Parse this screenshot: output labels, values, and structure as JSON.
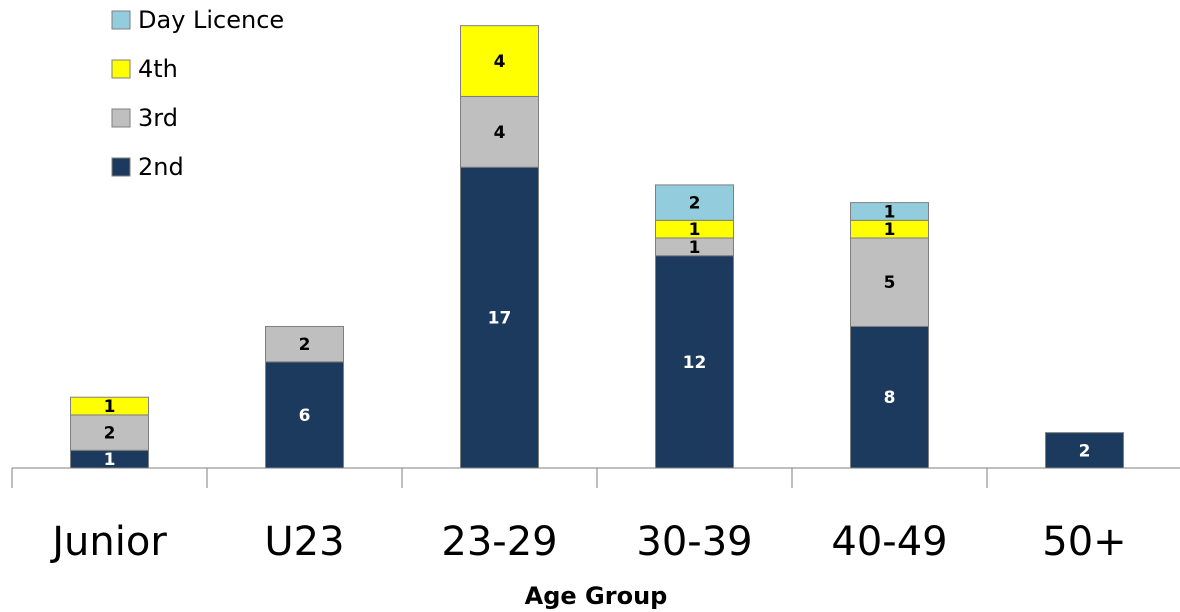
{
  "chart_data": {
    "type": "bar",
    "stacked": true,
    "categories": [
      "Junior",
      "U23",
      "23-29",
      "30-39",
      "40-49",
      "50+"
    ],
    "series": [
      {
        "name": "2nd",
        "color": "#1b3a5e",
        "values": [
          1,
          6,
          17,
          12,
          8,
          2
        ]
      },
      {
        "name": "3rd",
        "color": "#bfbfbf",
        "values": [
          2,
          2,
          4,
          1,
          5,
          0
        ]
      },
      {
        "name": "4th",
        "color": "#ffff00",
        "values": [
          1,
          0,
          4,
          1,
          1,
          0
        ]
      },
      {
        "name": "Day Licence",
        "color": "#93cddd",
        "values": [
          0,
          0,
          0,
          2,
          1,
          0
        ]
      }
    ],
    "legend_order": [
      "Day Licence",
      "4th",
      "3rd",
      "2nd"
    ],
    "legend_position": "top-left",
    "title": "",
    "xlabel": "Age Group",
    "ylabel": "",
    "ylim": [
      0,
      25
    ],
    "grid": false,
    "data_labels": true
  }
}
